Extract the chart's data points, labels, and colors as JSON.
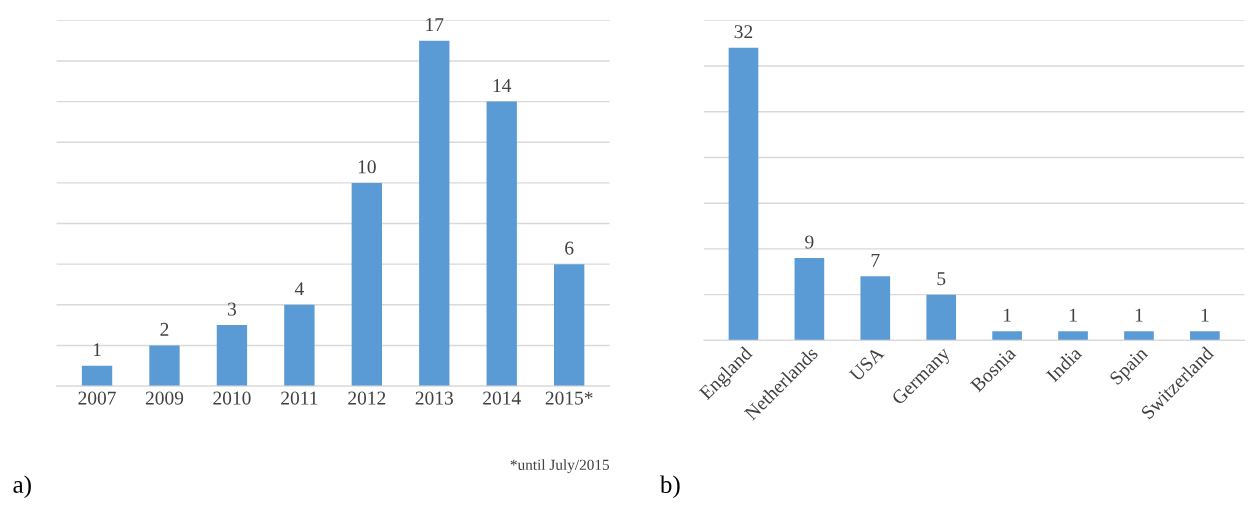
{
  "chart_data": [
    {
      "type": "bar",
      "categories": [
        "2007",
        "2009",
        "2010",
        "2011",
        "2012",
        "2013",
        "2014",
        "2015*"
      ],
      "values": [
        1,
        2,
        3,
        4,
        10,
        17,
        14,
        6
      ],
      "color": "#5b9bd5",
      "data_labels": true,
      "ylim": [
        0,
        18
      ],
      "yticks": [
        {
          "value": 0,
          "label": null
        },
        {
          "value": 2,
          "label": null
        },
        {
          "value": 4,
          "label": null
        },
        {
          "value": 6,
          "label": null
        },
        {
          "value": 8,
          "label": null
        },
        {
          "value": 10,
          "label": null
        },
        {
          "value": 12,
          "label": null
        },
        {
          "value": 14,
          "label": null
        },
        {
          "value": 16,
          "label": null
        },
        {
          "value": 18,
          "label": null
        }
      ],
      "grid": "y",
      "tick_labels": "x",
      "annotations": [
        "*until July/2015",
        "a)"
      ]
    },
    {
      "type": "bar",
      "categories": [
        "England",
        "Netherlands",
        "USA",
        "Germany",
        "Bosnia",
        "India",
        "Spain",
        "Switzerland"
      ],
      "values": [
        32,
        9,
        7,
        5,
        1,
        1,
        1,
        1
      ],
      "color": "#5b9bd5",
      "data_labels": true,
      "ylim": [
        0,
        35
      ],
      "yticks": [
        {
          "value": 0,
          "label": null
        },
        {
          "value": 5,
          "label": null
        },
        {
          "value": 10,
          "label": null
        },
        {
          "value": 15,
          "label": null
        },
        {
          "value": 20,
          "label": null
        },
        {
          "value": 25,
          "label": null
        },
        {
          "value": 30,
          "label": null
        },
        {
          "value": 35,
          "label": null
        }
      ],
      "grid": "y",
      "tick_labels": "x",
      "annotations": [
        "b)"
      ]
    }
  ]
}
